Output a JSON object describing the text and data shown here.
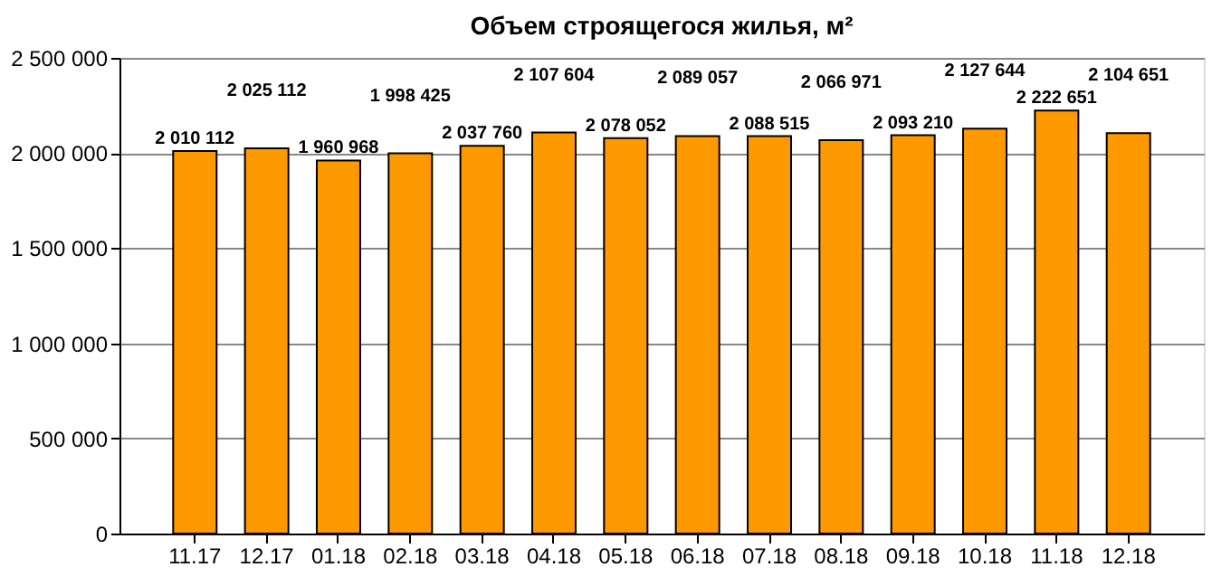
{
  "chart_data": {
    "type": "bar",
    "title": "Объем строящегося жилья, м²",
    "categories": [
      "11.17",
      "12.17",
      "01.18",
      "02.18",
      "03.18",
      "04.18",
      "05.18",
      "06.18",
      "07.18",
      "08.18",
      "09.18",
      "10.18",
      "11.18",
      "12.18"
    ],
    "values": [
      2010112,
      2025112,
      1960968,
      1998425,
      2037760,
      2107604,
      2078052,
      2089057,
      2088515,
      2066971,
      2093210,
      2127644,
      2222651,
      2104651
    ],
    "value_labels": [
      "2 010 112",
      "2 025 112",
      "1 960 968",
      "1 998 425",
      "2 037 760",
      "2 107 604",
      "2 078 052",
      "2 089 057",
      "2 088 515",
      "2 066 971",
      "2 093 210",
      "2 127 644",
      "2 222 651",
      "2 104 651"
    ],
    "color": "#ff9900",
    "ylim": [
      0,
      2500000
    ],
    "yticks": [
      {
        "value": 0,
        "label": "0"
      },
      {
        "value": 500000,
        "label": "500 000"
      },
      {
        "value": 1000000,
        "label": "1 000 000"
      },
      {
        "value": 1500000,
        "label": "1 500 000"
      },
      {
        "value": 2000000,
        "label": "2 000 000"
      },
      {
        "value": 2500000,
        "label": "2 500 000"
      }
    ],
    "grid": "y"
  }
}
